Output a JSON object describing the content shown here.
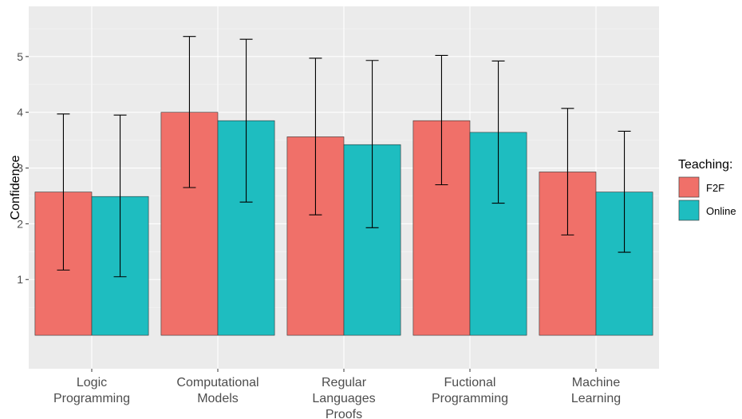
{
  "chart_data": {
    "type": "bar",
    "title": "",
    "xlabel": "",
    "ylabel": "Confidence",
    "ylim": [
      -0.6,
      5.9
    ],
    "yticks": [
      1,
      2,
      3,
      4,
      5
    ],
    "grid": true,
    "legend_position": "right",
    "legend_title": "Teaching:",
    "categories": [
      [
        "Logic",
        "Programming"
      ],
      [
        "Computational",
        "Models"
      ],
      [
        "Regular",
        "Languages",
        "Proofs"
      ],
      [
        "Fuctional",
        "Programming"
      ],
      [
        "Machine",
        "Learning"
      ]
    ],
    "series": [
      {
        "name": "F2F",
        "color": "#F07069",
        "values": [
          2.57,
          4.0,
          3.56,
          3.85,
          2.93
        ],
        "error_low": [
          1.17,
          2.65,
          2.16,
          2.7,
          1.8
        ],
        "error_high": [
          3.97,
          5.36,
          4.97,
          5.02,
          4.07
        ]
      },
      {
        "name": "Online",
        "color": "#1EBDC0",
        "values": [
          2.49,
          3.85,
          3.42,
          3.64,
          2.57
        ],
        "error_low": [
          1.05,
          2.39,
          1.93,
          2.37,
          1.49
        ],
        "error_high": [
          3.95,
          5.31,
          4.93,
          4.92,
          3.66
        ]
      }
    ]
  }
}
